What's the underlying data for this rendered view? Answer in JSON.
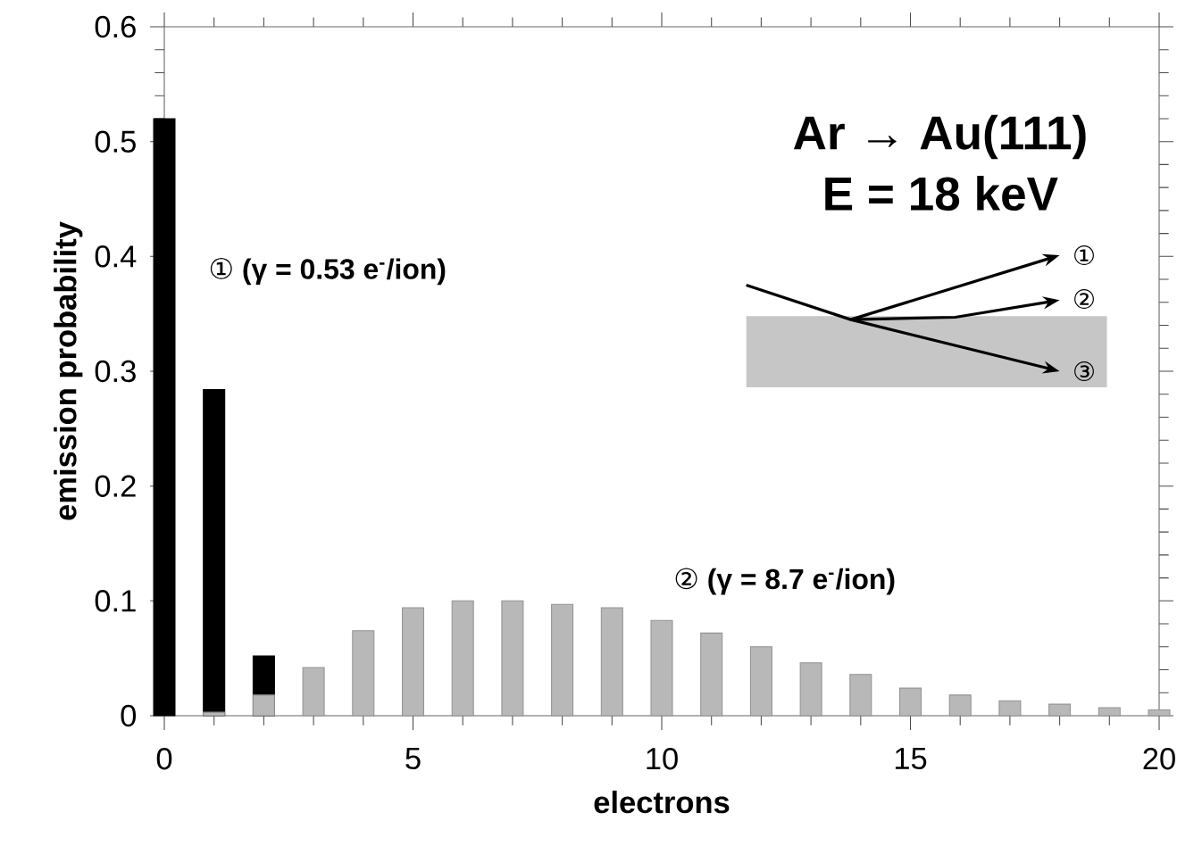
{
  "chart_data": {
    "type": "bar",
    "title": "Ar → Au(111)",
    "subtitle": "E = 18 keV",
    "xlabel": "electrons",
    "ylabel": "emission probability",
    "x": [
      0,
      1,
      2,
      3,
      4,
      5,
      6,
      7,
      8,
      9,
      10,
      11,
      12,
      13,
      14,
      15,
      16,
      17,
      18,
      19,
      20
    ],
    "series": [
      {
        "name": "①  (γ = 0.53 e$^{-}$/ion)",
        "color": "#000000",
        "values": [
          0.52,
          0.284,
          0.052,
          null,
          null,
          null,
          null,
          null,
          null,
          null,
          null,
          null,
          null,
          null,
          null,
          null,
          null,
          null,
          null,
          null,
          null
        ]
      },
      {
        "name": "②  (γ = 8.7 e$^{-}$/ion)",
        "color": "#b8b8b8",
        "values": [
          null,
          0.003,
          0.018,
          0.042,
          0.074,
          0.094,
          0.1,
          0.1,
          0.097,
          0.094,
          0.083,
          0.072,
          0.06,
          0.046,
          0.036,
          0.024,
          0.018,
          0.013,
          0.01,
          0.007,
          0.005
        ]
      }
    ],
    "xlim": [
      0,
      20
    ],
    "ylim": [
      0,
      0.6
    ],
    "xticks": [
      0,
      5,
      10,
      15,
      20
    ],
    "yticks": [
      0,
      0.1,
      0.2,
      0.3,
      0.4,
      0.5,
      0.6
    ],
    "annotations": [
      "①",
      "②",
      "③"
    ]
  }
}
